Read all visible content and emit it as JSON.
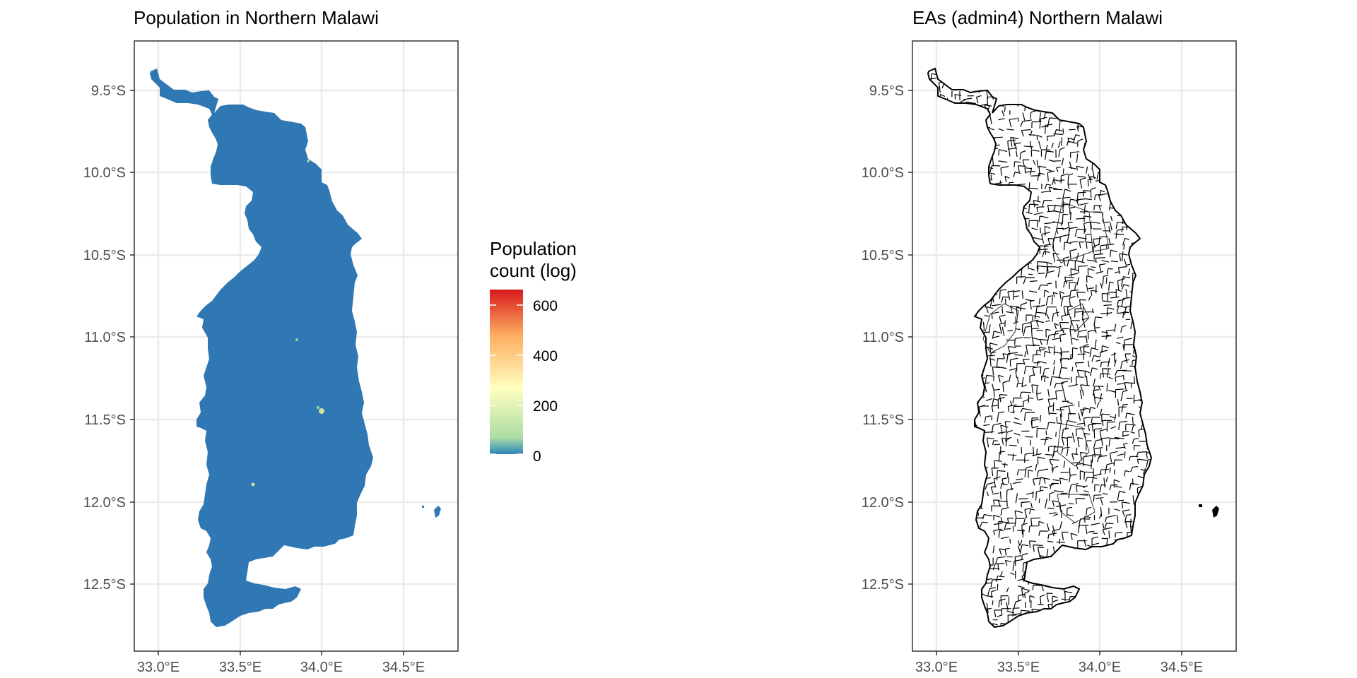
{
  "left_map": {
    "title": "Population in Northern Malawi",
    "fill_color": "#2f78b4"
  },
  "right_map": {
    "title": "EAs (admin4) Northern Malawi",
    "boundary_color": "#000000"
  },
  "axes": {
    "lat_ticks": [
      "9.5°S",
      "10.0°S",
      "10.5°S",
      "11.0°S",
      "11.5°S",
      "12.0°S",
      "12.5°S"
    ],
    "lon_ticks": [
      "33.0°E",
      "33.5°E",
      "34.0°E",
      "34.5°E"
    ]
  },
  "legend": {
    "title_line1": "Population",
    "title_line2": "count (log)",
    "labels": [
      "600",
      "400",
      "200",
      "0"
    ],
    "colors": [
      "#d7191c",
      "#fdae61",
      "#ffffbf",
      "#abdda4",
      "#2b83ba"
    ]
  }
}
